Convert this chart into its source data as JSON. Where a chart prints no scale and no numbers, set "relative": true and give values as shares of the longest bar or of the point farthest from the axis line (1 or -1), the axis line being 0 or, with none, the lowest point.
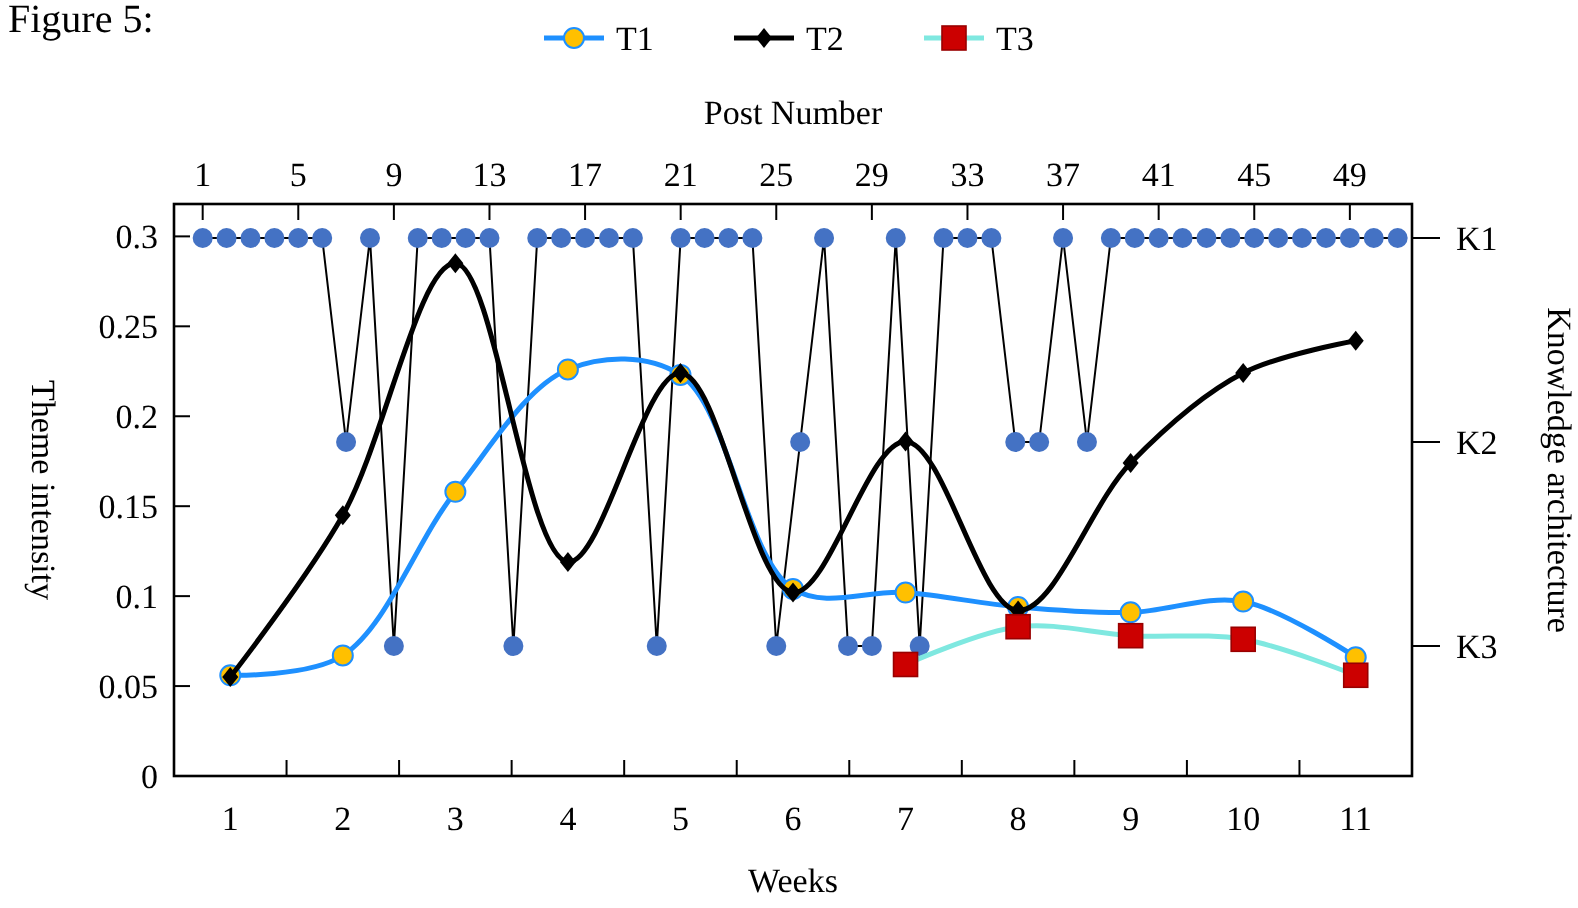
{
  "chart_data": [
    {
      "type": "line",
      "title": "Figure 5:",
      "xlabel": "Weeks",
      "ylabel": "Theme intensity",
      "x": [
        1,
        2,
        3,
        4,
        5,
        6,
        7,
        8,
        9,
        10,
        11
      ],
      "xlim": [
        0.5,
        11.5
      ],
      "xticks": [
        1,
        {
          "value": 1.5,
          "label": null
        },
        2,
        {
          "value": 2.5,
          "label": null
        },
        3,
        {
          "value": 3.5,
          "label": null
        },
        4,
        {
          "value": 4.5,
          "label": null
        },
        5,
        {
          "value": 5.5,
          "label": null
        },
        6,
        {
          "value": 6.5,
          "label": null
        },
        7,
        {
          "value": 7.5,
          "label": null
        },
        8,
        {
          "value": 8.5,
          "label": null
        },
        9,
        {
          "value": 9.5,
          "label": null
        },
        10,
        {
          "value": 10.5,
          "label": null
        },
        11
      ],
      "ylim": [
        0,
        0.318
      ],
      "yticks": [
        0,
        0.05,
        0.1,
        0.15,
        0.2,
        0.25,
        0.3
      ],
      "legend": "top",
      "series": [
        {
          "name": "T1",
          "color": "#1e90ff",
          "marker": "circle",
          "colors": [
            "#ffc000",
            "#ffc000",
            "#ffc000",
            "#ffc000",
            "#ffc000",
            "#ffc000",
            "#ffc000",
            "#ffc000",
            "#ffc000",
            "#ffc000",
            "#ffc000"
          ],
          "values": [
            0.056,
            0.067,
            0.158,
            0.226,
            0.223,
            0.104,
            0.102,
            0.094,
            0.091,
            0.097,
            0.066
          ]
        },
        {
          "name": "T2",
          "color": "#000000",
          "marker": "diamond",
          "values": [
            0.055,
            0.145,
            0.285,
            0.119,
            0.224,
            0.102,
            0.186,
            0.092,
            0.174,
            0.224,
            0.242
          ]
        },
        {
          "name": "T3",
          "color": "#7fe8e0",
          "marker": "square",
          "colors": [
            null,
            null,
            null,
            null,
            null,
            null,
            "#cc0000",
            "#cc0000",
            "#cc0000",
            "#cc0000",
            "#cc0000"
          ],
          "values": [
            null,
            null,
            null,
            null,
            null,
            null,
            0.062,
            0.083,
            0.078,
            0.076,
            0.056
          ]
        }
      ]
    },
    {
      "type": "line",
      "xlabel": "Post Number",
      "ylabel": "Knowledge architecture",
      "x": [
        1,
        2,
        3,
        4,
        5,
        6,
        7,
        8,
        9,
        10,
        11,
        12,
        13,
        14,
        15,
        16,
        17,
        18,
        19,
        20,
        21,
        22,
        23,
        24,
        25,
        26,
        27,
        28,
        29,
        30,
        31,
        32,
        33,
        34,
        35,
        36,
        37,
        38,
        39,
        40,
        41,
        42,
        43,
        44,
        45,
        46,
        47,
        48,
        49,
        50,
        51
      ],
      "xlim": [
        -0.2,
        51.6
      ],
      "xticks": [
        1,
        5,
        9,
        13,
        17,
        21,
        25,
        29,
        33,
        37,
        41,
        45,
        49
      ],
      "relative": true,
      "annotations": [
        "K1",
        "K2",
        "K3"
      ],
      "series": [
        {
          "color": "#4472c4",
          "marker": "circle",
          "values": [
            1,
            1,
            1,
            1,
            1,
            1,
            0.5,
            1,
            0,
            1,
            1,
            1,
            1,
            0,
            1,
            1,
            1,
            1,
            1,
            0,
            1,
            1,
            1,
            1,
            0,
            0.5,
            1,
            0,
            0,
            1,
            0,
            1,
            1,
            1,
            0.5,
            0.5,
            1,
            0.5,
            1,
            1,
            1,
            1,
            1,
            1,
            1,
            1,
            1,
            1,
            1,
            1,
            1
          ]
        }
      ]
    }
  ]
}
